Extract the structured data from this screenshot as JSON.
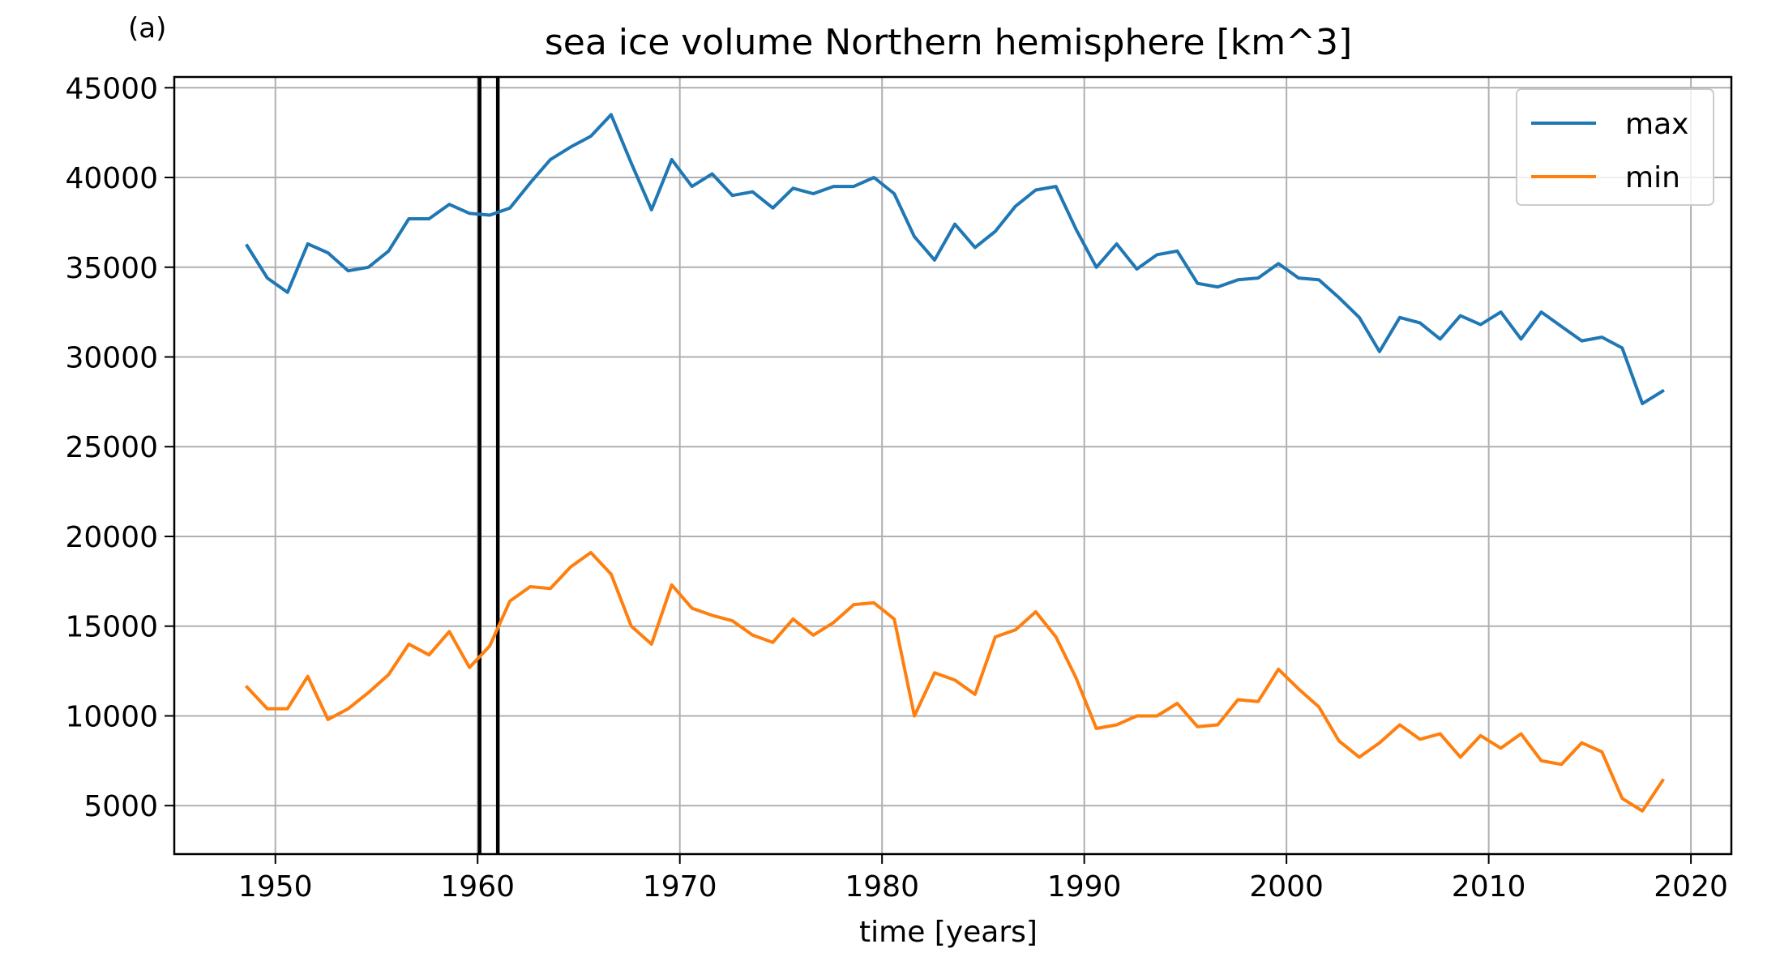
{
  "chart_data": {
    "type": "line",
    "panel_label": "(a)",
    "title": "sea ice volume Northern hemisphere [km^3]",
    "xlabel": "time [years]",
    "ylabel": "",
    "xlim": [
      1945,
      2022
    ],
    "ylim": [
      2300,
      45600
    ],
    "xticks": [
      1950,
      1960,
      1970,
      1980,
      1990,
      2000,
      2010,
      2020
    ],
    "yticks": [
      5000,
      10000,
      15000,
      20000,
      25000,
      30000,
      35000,
      40000,
      45000
    ],
    "grid": true,
    "legend_position": "top-right",
    "vertical_lines": [
      1960.1,
      1961.0
    ],
    "vertical_line_color": "#000000",
    "x": [
      1948.6,
      1949.6,
      1950.6,
      1951.6,
      1952.6,
      1953.6,
      1954.6,
      1955.6,
      1956.6,
      1957.6,
      1958.6,
      1959.6,
      1960.6,
      1961.6,
      1962.6,
      1963.6,
      1964.6,
      1965.6,
      1966.6,
      1967.6,
      1968.6,
      1969.6,
      1970.6,
      1971.6,
      1972.6,
      1973.6,
      1974.6,
      1975.6,
      1976.6,
      1977.6,
      1978.6,
      1979.6,
      1980.6,
      1981.6,
      1982.6,
      1983.6,
      1984.6,
      1985.6,
      1986.6,
      1987.6,
      1988.6,
      1989.6,
      1990.6,
      1991.6,
      1992.6,
      1993.6,
      1994.6,
      1995.6,
      1996.6,
      1997.6,
      1998.6,
      1999.6,
      2000.6,
      2001.6,
      2002.6,
      2003.6,
      2004.6,
      2005.6,
      2006.6,
      2007.6,
      2008.6,
      2009.6,
      2010.6,
      2011.6,
      2012.6,
      2013.6,
      2014.6,
      2015.6,
      2016.6,
      2017.6,
      2018.6
    ],
    "series": [
      {
        "name": "max",
        "color": "#1f77b4",
        "values": [
          36200,
          34400,
          33600,
          36300,
          35800,
          34800,
          35000,
          35900,
          37700,
          37700,
          38500,
          38000,
          37900,
          38300,
          39700,
          41000,
          41700,
          42300,
          43500,
          40800,
          38200,
          41000,
          39500,
          40200,
          39000,
          39200,
          38300,
          39400,
          39100,
          39500,
          39500,
          40000,
          39100,
          36700,
          35400,
          37400,
          36100,
          37000,
          38400,
          39300,
          39500,
          37100,
          35000,
          36300,
          34900,
          35700,
          35900,
          34100,
          33900,
          34300,
          34400,
          35200,
          34400,
          34300,
          33300,
          32200,
          30300,
          32200,
          31900,
          31000,
          32300,
          31800,
          32500,
          31000,
          32500,
          31700,
          30900,
          31100,
          30500,
          27400,
          28100
        ]
      },
      {
        "name": "min",
        "color": "#ff7f0e",
        "values": [
          11600,
          10400,
          10400,
          12200,
          9800,
          10400,
          11300,
          12300,
          14000,
          13400,
          14700,
          12700,
          13900,
          16400,
          17200,
          17100,
          18300,
          19100,
          17900,
          15000,
          14000,
          17300,
          16000,
          15600,
          15300,
          14500,
          14100,
          15400,
          14500,
          15200,
          16200,
          16300,
          15400,
          10000,
          12400,
          12000,
          11200,
          14400,
          14800,
          15800,
          14400,
          12100,
          9300,
          9500,
          10000,
          10000,
          10700,
          9400,
          9500,
          10900,
          10800,
          12600,
          11500,
          10500,
          8600,
          7700,
          8500,
          9500,
          8700,
          9000,
          7700,
          8900,
          8200,
          9000,
          7500,
          7300,
          8500,
          8000,
          5400,
          4700,
          6400
        ]
      }
    ]
  }
}
